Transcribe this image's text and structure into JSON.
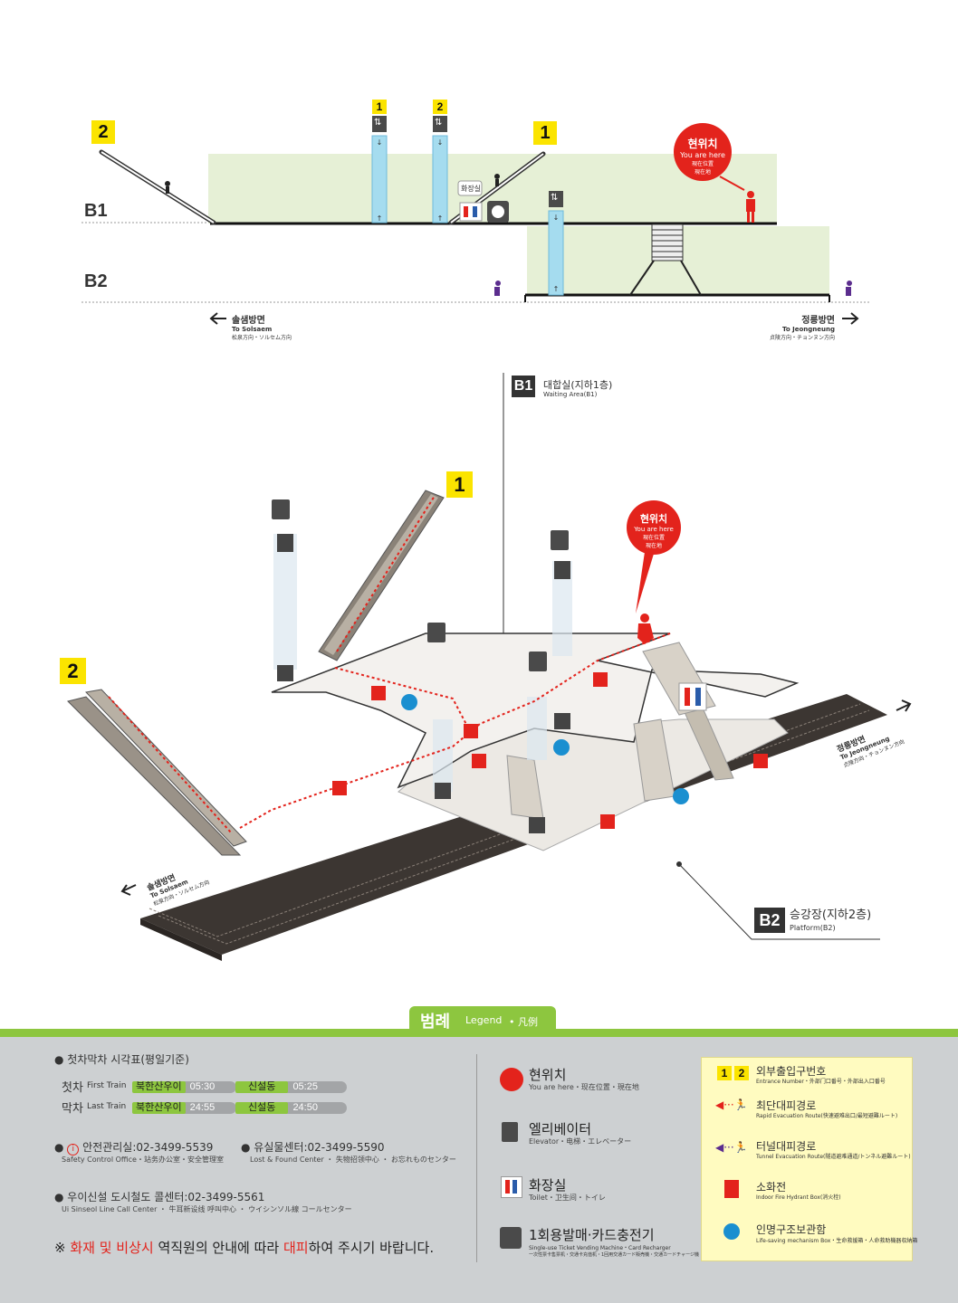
{
  "section": {
    "entrance_left_num": "2",
    "entrance_right_num": "1",
    "exit_pillar_1": "1",
    "exit_pillar_2": "2",
    "level_b1": "B1",
    "level_b2": "B2",
    "toilet_label": "화장실",
    "you_are_here": {
      "ko": "현위치",
      "en": "You are here",
      "cn1": "現在位置",
      "cn2": "現在地"
    },
    "dir_left": {
      "ko": "솔샘방면",
      "en": "To Solsaem",
      "sub": "松泉方向・ソルセム方向"
    },
    "dir_right": {
      "ko": "정릉방면",
      "en": "To Jeongneung",
      "sub": "贞陵方向・チョンヌン方向"
    }
  },
  "iso": {
    "b1_badge": "B1",
    "b1_ko": "대합실(지하1층)",
    "b1_en": "Waiting Area(B1)",
    "b2_badge": "B2",
    "b2_ko": "승강장(지하2층)",
    "b2_en": "Platform(B2)",
    "exit1": "1",
    "exit2": "2",
    "you_are_here": {
      "ko": "현위치",
      "en": "You are here",
      "cn1": "現在位置",
      "cn2": "現在地"
    },
    "dir_left": {
      "ko": "솔샘방면",
      "en": "To Solsaem",
      "sub": "松泉方向・ソルセム方向"
    },
    "dir_right": {
      "ko": "정릉방면",
      "en": "To Jeongneung",
      "sub": "贞陵方向・チョンヌン方向"
    }
  },
  "legend": {
    "title_ko": "범례",
    "title_en": "Legend",
    "title_cn": "凡例",
    "timetable_title": "● 첫차막차 시각표(평일기준)",
    "first_train": {
      "ko": "첫차",
      "en": "First Train",
      "dest1": "북한산우이",
      "time1": "05:30",
      "dest2": "신설동",
      "time2": "05:25"
    },
    "last_train": {
      "ko": "막차",
      "en": "Last Train",
      "dest1": "북한산우이",
      "time1": "24:55",
      "dest2": "신설동",
      "time2": "24:50"
    },
    "safety": {
      "ko": "안전관리실:02-3499-5539",
      "en": "Safety Control Office・站务办公室・安全管理室"
    },
    "lost": {
      "ko": "● 유실물센터:02-3499-5590",
      "en": "Lost & Found Center ・ 失物招领中心 ・ お忘れものセンター"
    },
    "callcenter": {
      "ko": "● 우이신설 도시철도 콜센터:02-3499-5561",
      "en": "Ui Sinseol Line Call Center ・ 牛耳新设线 呼叫中心 ・ ウイシンソル線 コールセンター"
    },
    "notice": {
      "pre": "※ ",
      "red1": "화재 및 비상시",
      "mid": " 역직원의 안내에 따라 ",
      "red2": "대피",
      "post": "하여 주시기 바랍니다."
    },
    "items_mid": [
      {
        "ko": "현위치",
        "en": "You are here・现在位置・現在地"
      },
      {
        "ko": "엘리베이터",
        "en": "Elevator・电梯・エレベーター"
      },
      {
        "ko": "화장실",
        "en": "Toilet・卫生间・トイレ"
      },
      {
        "ko": "1회용발매·카드충전기",
        "en": "Single-use Ticket Vending Machine・Card Recharger",
        "en2": "一次性票卡售票机・交通卡充值机・1回用交通カード販売機・交通カードチャージ機"
      }
    ],
    "items_right": [
      {
        "ko": "외부출입구번호",
        "en": "Entrance Number・外部门口番号・外部出入口番号",
        "n1": "1",
        "n2": "2"
      },
      {
        "ko": "최단대피경로",
        "en": "Rapid Evacuation Route(快速避难出口/最短避難ルート)"
      },
      {
        "ko": "터널대피경로",
        "en": "Tunnel Evacuation Route(隧道避难通道/トンネル避難ルート)"
      },
      {
        "ko": "소화전",
        "en": "Indoor Fire Hydrant Box(消火栓)"
      },
      {
        "ko": "인명구조보관함",
        "en": "Life-saving mechanism Box・生命救援箱・人命救助機器収納箱"
      }
    ]
  },
  "colors": {
    "green": "#8dc63f",
    "bg_green": "#e6f0d6",
    "blue": "#a5dcef",
    "red": "#e3231c",
    "purple": "#5b2d8e",
    "track": "#3c3632",
    "yellow": "#fbe400"
  }
}
